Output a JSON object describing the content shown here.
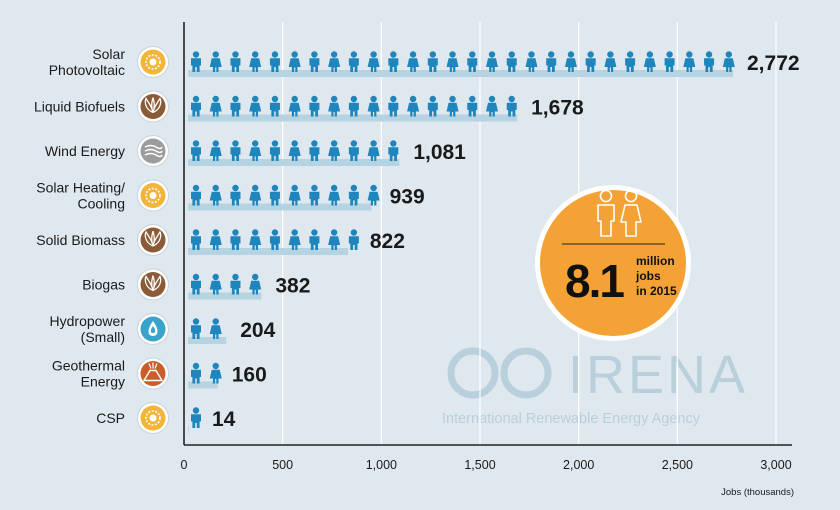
{
  "chart_data": {
    "type": "bar",
    "orientation": "horizontal",
    "categories": [
      [
        "Solar",
        "Photovoltaic"
      ],
      [
        "Liquid Biofuels"
      ],
      [
        "Wind Energy"
      ],
      [
        "Solar Heating/",
        "Cooling"
      ],
      [
        "Solid Biomass"
      ],
      [
        "Biogas"
      ],
      [
        "Hydropower",
        "(Small)"
      ],
      [
        "Geothermal",
        "Energy"
      ],
      [
        "CSP"
      ]
    ],
    "category_icons": [
      "sun-icon",
      "leaf-icon",
      "wind-icon",
      "sun-icon",
      "leaf-icon",
      "leaf-icon",
      "water-drop-icon",
      "volcano-icon",
      "sun-icon"
    ],
    "values": [
      2772,
      1678,
      1081,
      939,
      822,
      382,
      204,
      160,
      14
    ],
    "value_labels": [
      "2,772",
      "1,678",
      "1,081",
      "939",
      "822",
      "382",
      "204",
      "160",
      "14"
    ],
    "xlim": [
      0,
      3000
    ],
    "xticks": [
      0,
      500,
      1000,
      1500,
      2000,
      2500,
      3000
    ],
    "xtick_labels": [
      "0",
      "500",
      "1,000",
      "1,500",
      "2,000",
      "2,500",
      "3,000"
    ],
    "xlabel": "Jobs (thousands)",
    "grid": true,
    "unit_per_person_icon": 100
  },
  "callout": {
    "value": "8.1",
    "line1": "million",
    "line2": "jobs",
    "line3": "in 2015"
  },
  "watermark": {
    "name": "IRENA",
    "subtitle": "International Renewable Energy Agency"
  },
  "colors": {
    "person": "#1e86bd",
    "bar_shadow": "#b6d3e2",
    "background": "#dfe8ee",
    "callout": "#f4a236",
    "sun": "#f3b43a",
    "leaf": "#8b5a36",
    "wind": "#9c9c9c",
    "drop": "#3aa3c9",
    "volcano": "#c95e2a"
  }
}
